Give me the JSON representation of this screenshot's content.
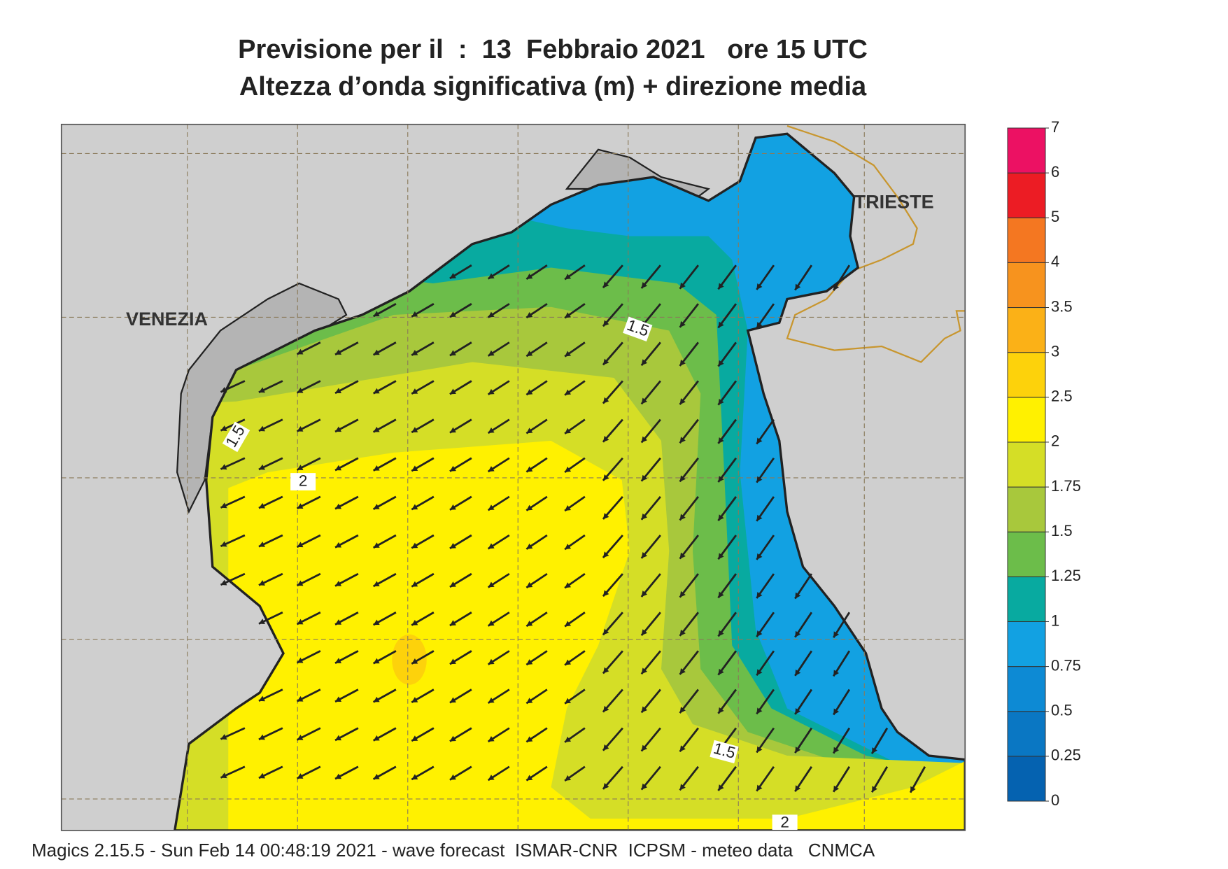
{
  "header": {
    "title_line1": "Previsione per il  :  13  Febbraio 2021   ore 15 UTC",
    "title_line2": "Altezza d’onda significativa (m) + direzione media"
  },
  "map": {
    "cities": [
      "VENEZIA",
      "TRIESTE"
    ],
    "contour_labels": [
      1.5,
      1.5,
      2,
      1.5,
      2
    ]
  },
  "colorbar": {
    "levels": [
      0,
      0.25,
      0.5,
      0.75,
      1,
      1.25,
      1.5,
      1.75,
      2,
      2.5,
      3,
      3.5,
      4,
      5,
      6,
      7
    ],
    "colors": [
      "#0562b0",
      "#0a77c3",
      "#0d8ad4",
      "#12a1e2",
      "#08aaa0",
      "#6cbd4a",
      "#a8c83c",
      "#d5de26",
      "#fff100",
      "#fdd20b",
      "#fbb117",
      "#f7931e",
      "#f47721",
      "#ec1c24",
      "#ec1163"
    ]
  },
  "footer": "Magics 2.15.5 - Sun Feb 14 00:48:19 2021 - wave forecast  ISMAR-CNR  ICPSM - meteo data   CNMCA"
}
